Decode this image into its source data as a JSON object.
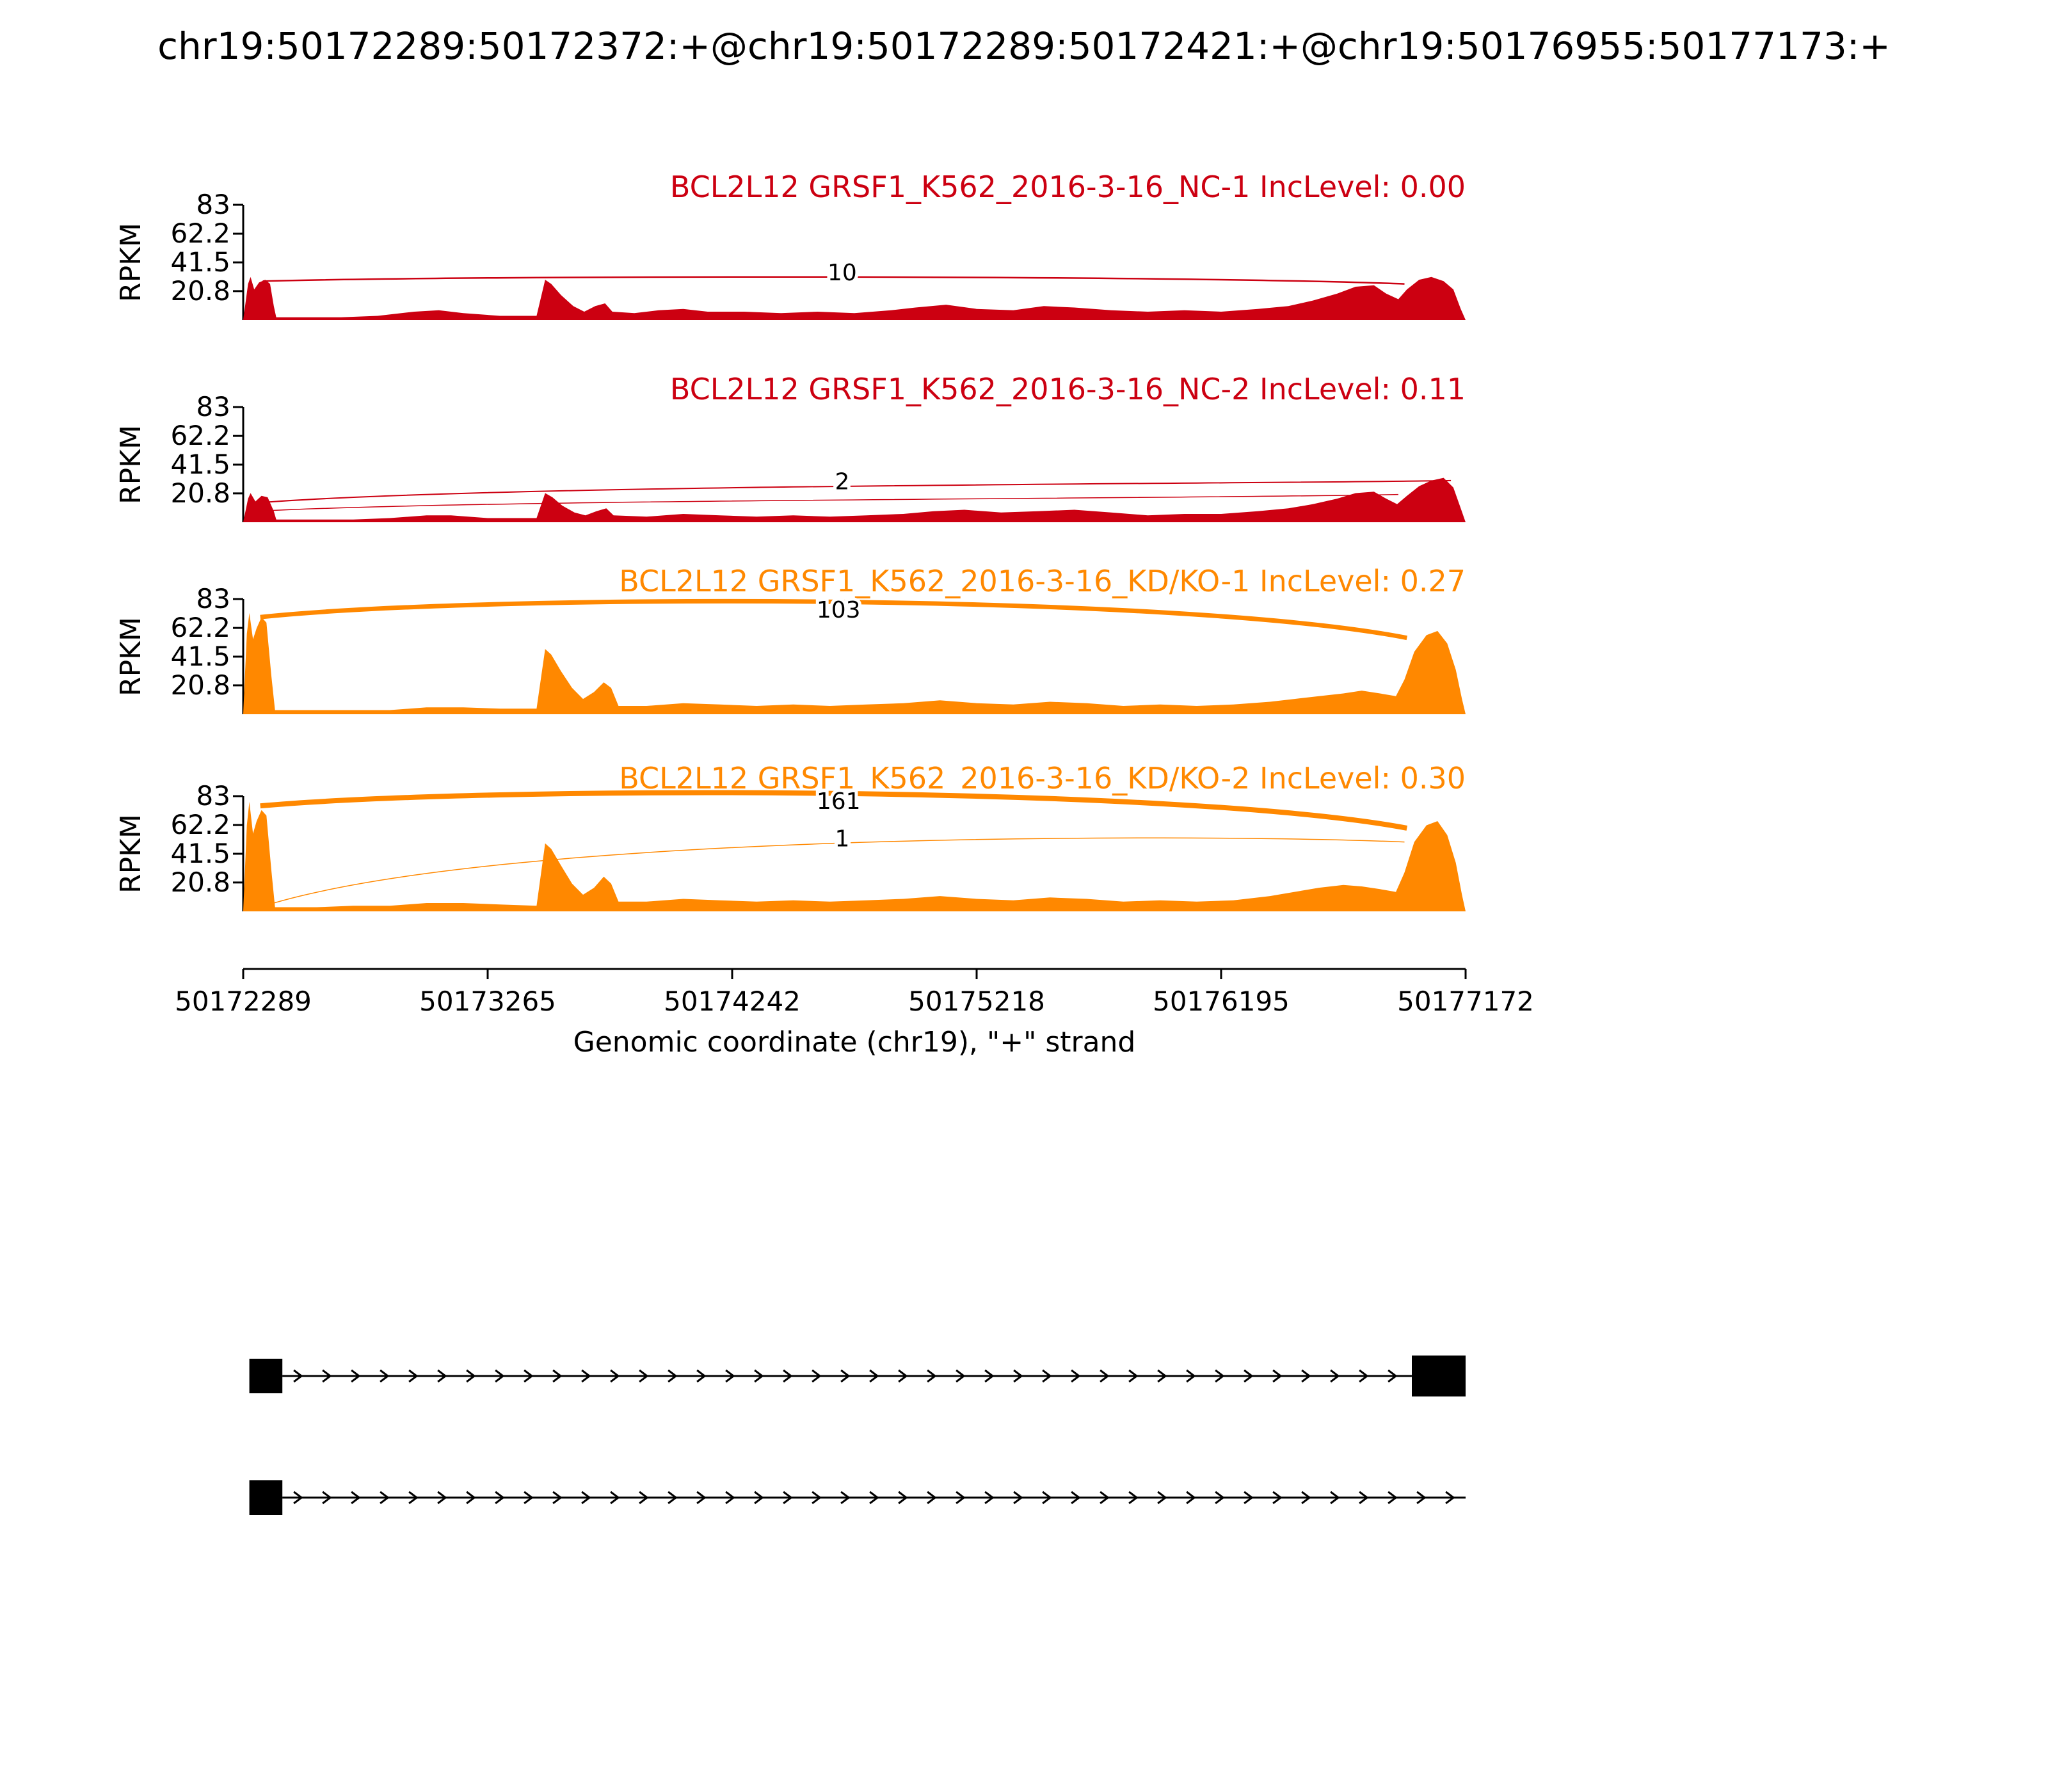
{
  "title": "chr19:50172289:50172372:+@chr19:50172289:50172421:+@chr19:50176955:50177173:+",
  "axis": {
    "ylabel": "RPKM",
    "xlabel": "Genomic coordinate (chr19), \"+\" strand"
  },
  "chart_data": {
    "type": "area",
    "subtype": "sashimi-plot",
    "x_range": [
      50172289,
      50177172
    ],
    "ymax": 83,
    "yticks": [
      "83",
      "62.2",
      "41.5",
      "20.8"
    ],
    "xticks": [
      "50172289",
      "50173265",
      "50174242",
      "50175218",
      "50176195",
      "50177172"
    ],
    "tracks": [
      {
        "label": "BCL2L12 GRSF1_K562_2016-3-16_NC-1 IncLevel: 0.00",
        "inc_level": "0.00",
        "color": "#CC0011",
        "coverage": [
          [
            0,
            0
          ],
          [
            0.004,
            26
          ],
          [
            0.006,
            31
          ],
          [
            0.009,
            22
          ],
          [
            0.013,
            27
          ],
          [
            0.018,
            29
          ],
          [
            0.022,
            26
          ],
          [
            0.025,
            10
          ],
          [
            0.027,
            2
          ],
          [
            0.05,
            2
          ],
          [
            0.08,
            2
          ],
          [
            0.11,
            3
          ],
          [
            0.14,
            6
          ],
          [
            0.16,
            7
          ],
          [
            0.18,
            5
          ],
          [
            0.21,
            3
          ],
          [
            0.24,
            3
          ],
          [
            0.247,
            29
          ],
          [
            0.252,
            26
          ],
          [
            0.26,
            18
          ],
          [
            0.27,
            10
          ],
          [
            0.279,
            6
          ],
          [
            0.288,
            10
          ],
          [
            0.296,
            12
          ],
          [
            0.302,
            6
          ],
          [
            0.32,
            5
          ],
          [
            0.34,
            7
          ],
          [
            0.36,
            8
          ],
          [
            0.38,
            6
          ],
          [
            0.41,
            6
          ],
          [
            0.44,
            5
          ],
          [
            0.47,
            6
          ],
          [
            0.5,
            5
          ],
          [
            0.53,
            7
          ],
          [
            0.55,
            9
          ],
          [
            0.575,
            11
          ],
          [
            0.6,
            8
          ],
          [
            0.63,
            7
          ],
          [
            0.655,
            10
          ],
          [
            0.68,
            9
          ],
          [
            0.71,
            7
          ],
          [
            0.74,
            6
          ],
          [
            0.77,
            7
          ],
          [
            0.8,
            6
          ],
          [
            0.83,
            8
          ],
          [
            0.855,
            10
          ],
          [
            0.875,
            14
          ],
          [
            0.895,
            19
          ],
          [
            0.91,
            24
          ],
          [
            0.925,
            25
          ],
          [
            0.935,
            19
          ],
          [
            0.945,
            15
          ],
          [
            0.952,
            22
          ],
          [
            0.962,
            29
          ],
          [
            0.972,
            31
          ],
          [
            0.982,
            28
          ],
          [
            0.99,
            22
          ],
          [
            0.996,
            8
          ],
          [
            1,
            0
          ]
        ],
        "junctions": [
          {
            "count": "10",
            "x1": 0.016,
            "x2": 0.95,
            "y1": 28,
            "y2": 26,
            "apex": 31,
            "label_x": 0.49,
            "label_y": 34,
            "width": 2.5
          }
        ]
      },
      {
        "label": "BCL2L12 GRSF1_K562_2016-3-16_NC-2 IncLevel: 0.11",
        "inc_level": "0.11",
        "color": "#CC0011",
        "coverage": [
          [
            0,
            0
          ],
          [
            0.004,
            17
          ],
          [
            0.006,
            21
          ],
          [
            0.01,
            15
          ],
          [
            0.015,
            19
          ],
          [
            0.02,
            18
          ],
          [
            0.025,
            8
          ],
          [
            0.027,
            2
          ],
          [
            0.06,
            2
          ],
          [
            0.09,
            2
          ],
          [
            0.12,
            3
          ],
          [
            0.15,
            5
          ],
          [
            0.17,
            5
          ],
          [
            0.2,
            3
          ],
          [
            0.24,
            3
          ],
          [
            0.247,
            21
          ],
          [
            0.253,
            18
          ],
          [
            0.261,
            12
          ],
          [
            0.271,
            7
          ],
          [
            0.28,
            5
          ],
          [
            0.289,
            8
          ],
          [
            0.297,
            10
          ],
          [
            0.303,
            5
          ],
          [
            0.33,
            4
          ],
          [
            0.36,
            6
          ],
          [
            0.39,
            5
          ],
          [
            0.42,
            4
          ],
          [
            0.45,
            5
          ],
          [
            0.48,
            4
          ],
          [
            0.51,
            5
          ],
          [
            0.54,
            6
          ],
          [
            0.565,
            8
          ],
          [
            0.59,
            9
          ],
          [
            0.62,
            7
          ],
          [
            0.65,
            8
          ],
          [
            0.68,
            9
          ],
          [
            0.71,
            7
          ],
          [
            0.74,
            5
          ],
          [
            0.77,
            6
          ],
          [
            0.8,
            6
          ],
          [
            0.83,
            8
          ],
          [
            0.855,
            10
          ],
          [
            0.875,
            13
          ],
          [
            0.895,
            17
          ],
          [
            0.91,
            21
          ],
          [
            0.925,
            22
          ],
          [
            0.935,
            17
          ],
          [
            0.944,
            13
          ],
          [
            0.952,
            19
          ],
          [
            0.962,
            26
          ],
          [
            0.972,
            30
          ],
          [
            0.982,
            32
          ],
          [
            0.99,
            25
          ],
          [
            0.996,
            10
          ],
          [
            1,
            0
          ]
        ],
        "junctions": [
          {
            "count": "2",
            "x1": 0.012,
            "x2": 0.988,
            "y1": 14,
            "y2": 30,
            "apex": 26,
            "label_x": 0.49,
            "label_y": 29,
            "width": 2
          },
          {
            "count": "",
            "x1": 0.012,
            "x2": 0.945,
            "y1": 8,
            "y2": 20,
            "apex": 16,
            "label_x": 0.49,
            "label_y": 0,
            "width": 1.5
          }
        ]
      },
      {
        "label": "BCL2L12 GRSF1_K562_2016-3-16_KD/KO-1 IncLevel: 0.27",
        "inc_level": "0.27",
        "color": "#FF8800",
        "coverage": [
          [
            0,
            0
          ],
          [
            0.003,
            58
          ],
          [
            0.005,
            73
          ],
          [
            0.008,
            54
          ],
          [
            0.011,
            62
          ],
          [
            0.015,
            70
          ],
          [
            0.019,
            66
          ],
          [
            0.023,
            28
          ],
          [
            0.026,
            3
          ],
          [
            0.06,
            3
          ],
          [
            0.09,
            3
          ],
          [
            0.12,
            3
          ],
          [
            0.15,
            5
          ],
          [
            0.18,
            5
          ],
          [
            0.21,
            4
          ],
          [
            0.24,
            4
          ],
          [
            0.247,
            47
          ],
          [
            0.252,
            43
          ],
          [
            0.26,
            31
          ],
          [
            0.269,
            19
          ],
          [
            0.278,
            11
          ],
          [
            0.287,
            16
          ],
          [
            0.295,
            23
          ],
          [
            0.301,
            19
          ],
          [
            0.307,
            6
          ],
          [
            0.33,
            6
          ],
          [
            0.36,
            8
          ],
          [
            0.39,
            7
          ],
          [
            0.42,
            6
          ],
          [
            0.45,
            7
          ],
          [
            0.48,
            6
          ],
          [
            0.51,
            7
          ],
          [
            0.54,
            8
          ],
          [
            0.57,
            10
          ],
          [
            0.6,
            8
          ],
          [
            0.63,
            7
          ],
          [
            0.66,
            9
          ],
          [
            0.69,
            8
          ],
          [
            0.72,
            6
          ],
          [
            0.75,
            7
          ],
          [
            0.78,
            6
          ],
          [
            0.81,
            7
          ],
          [
            0.84,
            9
          ],
          [
            0.86,
            11
          ],
          [
            0.88,
            13
          ],
          [
            0.9,
            15
          ],
          [
            0.915,
            17
          ],
          [
            0.93,
            15
          ],
          [
            0.943,
            13
          ],
          [
            0.95,
            25
          ],
          [
            0.958,
            45
          ],
          [
            0.968,
            57
          ],
          [
            0.977,
            60
          ],
          [
            0.985,
            51
          ],
          [
            0.992,
            32
          ],
          [
            0.997,
            11
          ],
          [
            1,
            0
          ]
        ],
        "junctions": [
          {
            "count": "103",
            "x1": 0.014,
            "x2": 0.952,
            "y1": 70,
            "y2": 55,
            "apex": 81,
            "label_x": 0.487,
            "label_y": 75,
            "width": 7
          }
        ]
      },
      {
        "label": "BCL2L12 GRSF1_K562_2016-3-16_KD/KO-2 IncLevel: 0.30",
        "inc_level": "0.30",
        "color": "#FF8800",
        "coverage": [
          [
            0,
            0
          ],
          [
            0.003,
            62
          ],
          [
            0.005,
            79
          ],
          [
            0.008,
            56
          ],
          [
            0.011,
            65
          ],
          [
            0.015,
            73
          ],
          [
            0.019,
            69
          ],
          [
            0.023,
            30
          ],
          [
            0.026,
            3
          ],
          [
            0.06,
            3
          ],
          [
            0.09,
            4
          ],
          [
            0.12,
            4
          ],
          [
            0.15,
            6
          ],
          [
            0.18,
            6
          ],
          [
            0.21,
            5
          ],
          [
            0.24,
            4
          ],
          [
            0.247,
            49
          ],
          [
            0.252,
            45
          ],
          [
            0.26,
            33
          ],
          [
            0.269,
            20
          ],
          [
            0.278,
            12
          ],
          [
            0.287,
            17
          ],
          [
            0.295,
            25
          ],
          [
            0.301,
            20
          ],
          [
            0.307,
            7
          ],
          [
            0.33,
            7
          ],
          [
            0.36,
            9
          ],
          [
            0.39,
            8
          ],
          [
            0.42,
            7
          ],
          [
            0.45,
            8
          ],
          [
            0.48,
            7
          ],
          [
            0.51,
            8
          ],
          [
            0.54,
            9
          ],
          [
            0.57,
            11
          ],
          [
            0.6,
            9
          ],
          [
            0.63,
            8
          ],
          [
            0.66,
            10
          ],
          [
            0.69,
            9
          ],
          [
            0.72,
            7
          ],
          [
            0.75,
            8
          ],
          [
            0.78,
            7
          ],
          [
            0.81,
            8
          ],
          [
            0.84,
            11
          ],
          [
            0.86,
            14
          ],
          [
            0.88,
            17
          ],
          [
            0.9,
            19
          ],
          [
            0.915,
            18
          ],
          [
            0.93,
            16
          ],
          [
            0.943,
            14
          ],
          [
            0.95,
            28
          ],
          [
            0.958,
            50
          ],
          [
            0.968,
            62
          ],
          [
            0.977,
            65
          ],
          [
            0.985,
            55
          ],
          [
            0.992,
            35
          ],
          [
            0.997,
            12
          ],
          [
            1,
            0
          ]
        ],
        "junctions": [
          {
            "count": "161",
            "x1": 0.014,
            "x2": 0.952,
            "y1": 76,
            "y2": 60,
            "apex": 85,
            "label_x": 0.487,
            "label_y": 79,
            "width": 8
          },
          {
            "count": "1",
            "x1": 0.014,
            "x2": 0.95,
            "y1": 3,
            "y2": 50,
            "apex": 49,
            "label_x": 0.49,
            "label_y": 52,
            "width": 1.5
          }
        ]
      }
    ],
    "gene_structure": {
      "isoforms": [
        {
          "exons": [
            {
              "start": 0.005,
              "end": 0.032,
              "height": 54
            },
            {
              "start": 0.956,
              "end": 1.0,
              "height": 64
            }
          ],
          "line_start": 0.032,
          "line_end": 0.956,
          "arrow_to_end": false
        },
        {
          "exons": [
            {
              "start": 0.005,
              "end": 0.032,
              "height": 54
            }
          ],
          "line_start": 0.032,
          "line_end": 1.0,
          "arrow_to_end": true
        }
      ]
    }
  }
}
